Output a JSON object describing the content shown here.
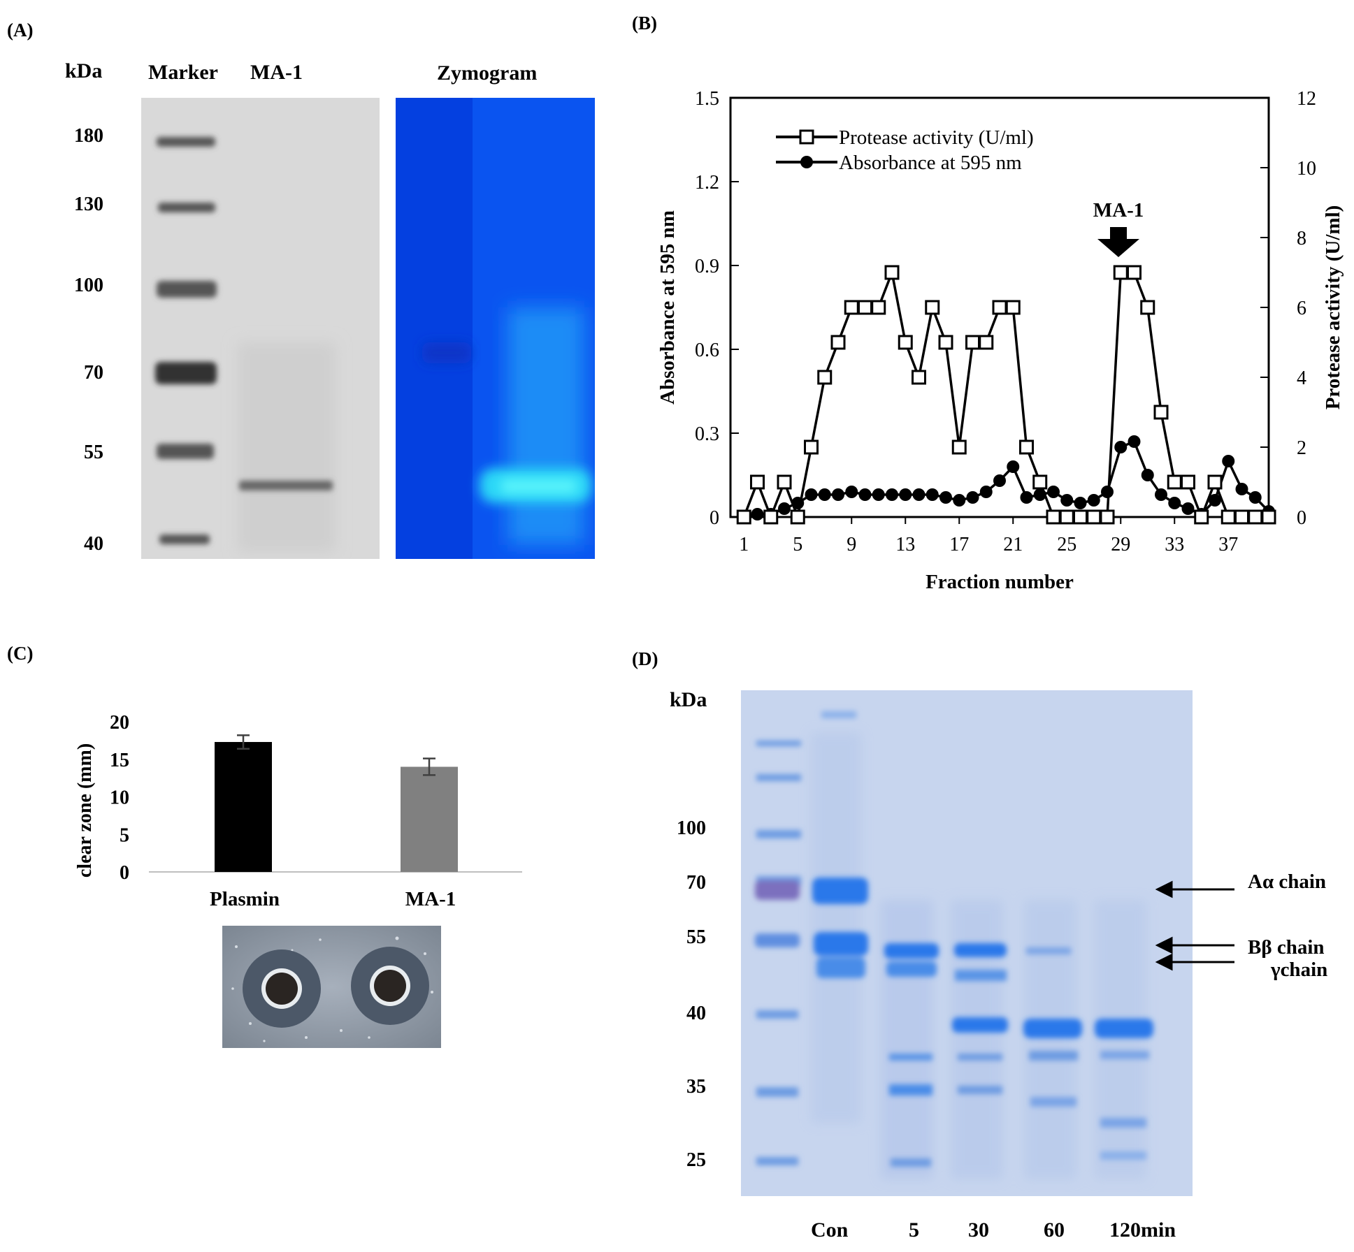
{
  "panel_a": {
    "label": "(A)",
    "kda_label": "kDa",
    "lane_marker": "Marker",
    "lane_ma1": "MA-1",
    "zymogram_title": "Zymogram",
    "ladder": [
      "180",
      "130",
      "100",
      "70",
      "55",
      "40"
    ]
  },
  "panel_b": {
    "label": "(B)",
    "arrow_label": "MA-1"
  },
  "panel_c": {
    "label": "(C)"
  },
  "panel_d": {
    "label": "(D)",
    "kda_label": "kDa",
    "ladder": [
      "100",
      "70",
      "55",
      "40",
      "35",
      "25"
    ],
    "lanes": [
      "Con",
      "5",
      "30",
      "60",
      "120min"
    ],
    "annotations": [
      "Aα chain",
      "Bβ chain",
      "γchain"
    ]
  },
  "chart_data": [
    {
      "id": "fraction-profile",
      "type": "line",
      "title": "",
      "xlabel": "Fraction number",
      "ylabel": "Absorbance at 595 nm",
      "y2label": "Protease activity (U/ml)",
      "xlim": [
        0,
        40
      ],
      "ylim": [
        0,
        1.5
      ],
      "y2lim": [
        0,
        12
      ],
      "xticks": [
        1,
        5,
        9,
        13,
        17,
        21,
        25,
        29,
        33,
        37
      ],
      "yticks": [
        "0",
        "0.3",
        "0.6",
        "0.9",
        "1.2",
        "1.5"
      ],
      "y2ticks": [
        "0",
        "2",
        "4",
        "6",
        "8",
        "10",
        "12"
      ],
      "legend_position": "top-left",
      "series": [
        {
          "name": "Protease activity (U/ml)",
          "axis": "right",
          "marker": "open-square",
          "x": [
            1,
            2,
            3,
            4,
            5,
            6,
            7,
            8,
            9,
            10,
            11,
            12,
            13,
            14,
            15,
            16,
            17,
            18,
            19,
            20,
            21,
            22,
            23,
            24,
            25,
            26,
            27,
            28,
            29,
            30,
            31,
            32,
            33,
            34,
            35,
            36,
            37,
            38,
            39,
            40
          ],
          "values": [
            0,
            1,
            0,
            1,
            0,
            2,
            4,
            5,
            6,
            6,
            6,
            7,
            5,
            4,
            6,
            5,
            2,
            5,
            5,
            6,
            6,
            2,
            1,
            0,
            0,
            0,
            0,
            0,
            7,
            7,
            6,
            3,
            1,
            1,
            0,
            1,
            0,
            0,
            0,
            0
          ]
        },
        {
          "name": "Absorbance at 595 nm",
          "axis": "left",
          "marker": "filled-circle",
          "x": [
            1,
            2,
            3,
            4,
            5,
            6,
            7,
            8,
            9,
            10,
            11,
            12,
            13,
            14,
            15,
            16,
            17,
            18,
            19,
            20,
            21,
            22,
            23,
            24,
            25,
            26,
            27,
            28,
            29,
            30,
            31,
            32,
            33,
            34,
            35,
            36,
            37,
            38,
            39,
            40
          ],
          "values": [
            0,
            0.01,
            0.01,
            0.03,
            0.05,
            0.08,
            0.08,
            0.08,
            0.09,
            0.08,
            0.08,
            0.08,
            0.08,
            0.08,
            0.08,
            0.07,
            0.06,
            0.07,
            0.09,
            0.13,
            0.18,
            0.07,
            0.08,
            0.09,
            0.06,
            0.05,
            0.06,
            0.09,
            0.25,
            0.27,
            0.15,
            0.08,
            0.05,
            0.03,
            0.01,
            0.06,
            0.2,
            0.1,
            0.07,
            0.02
          ]
        }
      ]
    },
    {
      "id": "clear-zone",
      "type": "bar",
      "title": "",
      "xlabel": "",
      "ylabel": "clear zone (mm)",
      "categories": [
        "Plasmin",
        "MA-1"
      ],
      "values": [
        17.3,
        14
      ],
      "errors": [
        0.9,
        1.1
      ],
      "colors": [
        "#000000",
        "#808080"
      ],
      "ylim": [
        0,
        20
      ],
      "yticks": [
        "0",
        "5",
        "10",
        "15",
        "20"
      ]
    }
  ]
}
